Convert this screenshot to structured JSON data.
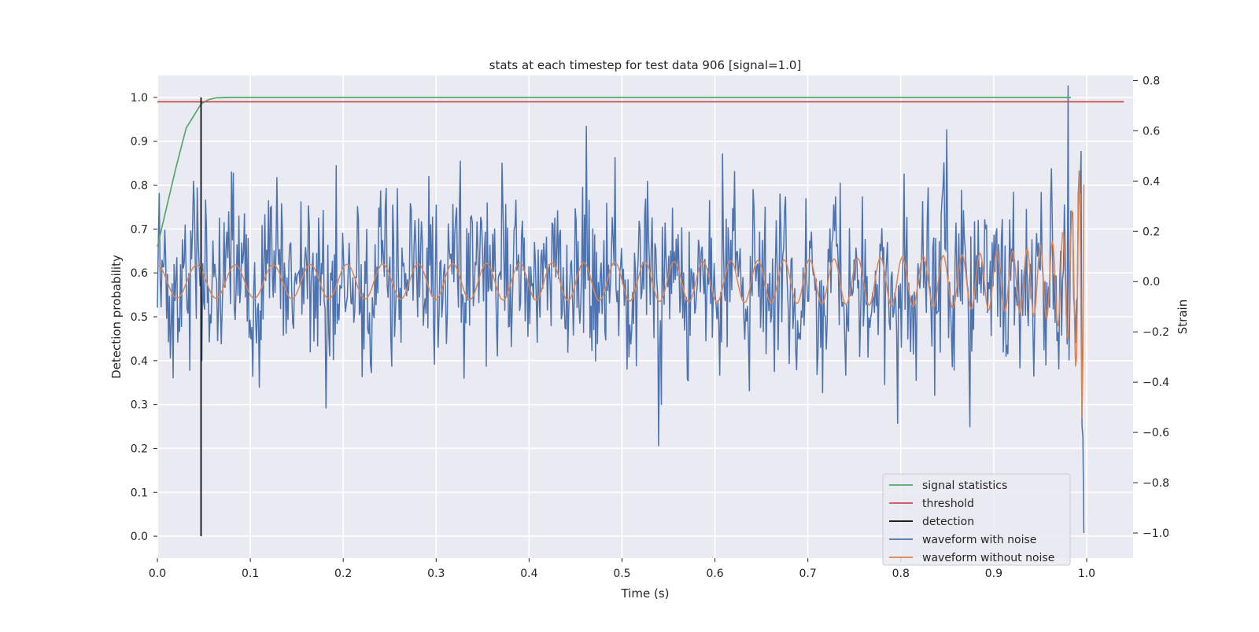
{
  "chart_data": {
    "type": "line",
    "title": "stats at each timestep for test data 906 [signal=1.0]",
    "xlabel": "Time (s)",
    "ylabel": "Detection probability",
    "ylabel_right": "Strain",
    "xlim": [
      0.0,
      1.05
    ],
    "ylim": [
      -0.05,
      1.05
    ],
    "ylim_right": [
      -1.1,
      0.82
    ],
    "xticks": [
      "0.0",
      "0.1",
      "0.2",
      "0.3",
      "0.4",
      "0.5",
      "0.6",
      "0.7",
      "0.8",
      "0.9",
      "1.0"
    ],
    "yticks": [
      "0.0",
      "0.1",
      "0.2",
      "0.3",
      "0.4",
      "0.5",
      "0.6",
      "0.7",
      "0.8",
      "0.9",
      "1.0"
    ],
    "yticks_right": [
      "−1.0",
      "−0.8",
      "−0.6",
      "−0.4",
      "−0.2",
      "0.0",
      "0.2",
      "0.4",
      "0.6",
      "0.8"
    ],
    "grid": true,
    "legend_position": "lower-right",
    "colors": {
      "background": "#eaeaf2",
      "grid": "#ffffff",
      "signal_statistics": "#55a868",
      "threshold": "#c44e52",
      "detection": "#000000",
      "waveform_with_noise": "#4c72b0",
      "waveform_without_noise": "#dd8452"
    },
    "series": [
      {
        "name": "signal statistics",
        "axis": "left",
        "x": [
          0.0,
          0.01,
          0.02,
          0.031,
          0.047,
          0.055,
          0.063,
          0.08,
          0.2,
          0.5,
          0.8,
          0.983
        ],
        "values": [
          0.66,
          0.75,
          0.84,
          0.93,
          0.985,
          0.995,
          0.999,
          1.0,
          1.0,
          1.0,
          1.0,
          1.0
        ]
      },
      {
        "name": "threshold",
        "axis": "left",
        "x": [
          0.0,
          1.04
        ],
        "values": [
          0.99,
          0.99
        ]
      },
      {
        "name": "detection",
        "axis": "left",
        "x": [
          0.047,
          0.047
        ],
        "values": [
          0.0,
          1.0
        ]
      },
      {
        "name": "waveform with noise",
        "axis": "right",
        "description_values": "noisy strain signal sampled over 0.0–1.0 s, amplitude mostly within -0.45 to 0.55, final dip to about -1.0 near 0.997 s"
      },
      {
        "name": "waveform without noise",
        "axis": "right",
        "description_values": "chirp signal with amplitude ~0.07 at start rising to ~0.55 at 1.0 s; frequency increasing toward merger"
      }
    ]
  }
}
